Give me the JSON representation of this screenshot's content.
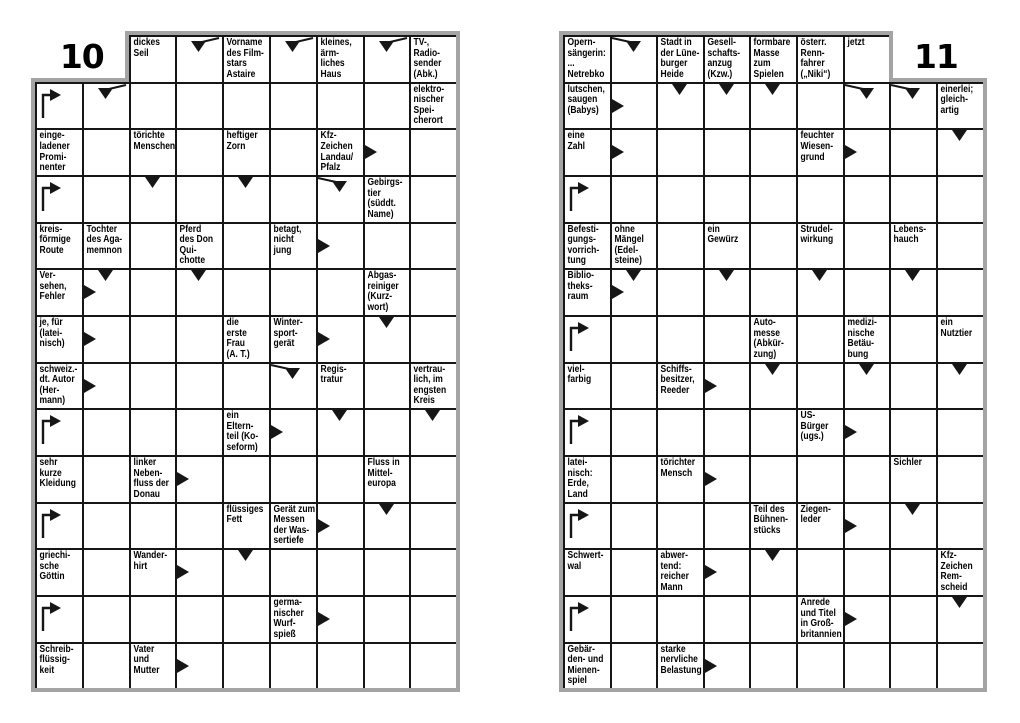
{
  "colors": {
    "grid_line": "#161616",
    "frame": "#a4a4a4",
    "background": "#ffffff",
    "text": "#000000"
  },
  "page_left": {
    "number": "10",
    "cells": [
      {
        "r": 0,
        "c": 2,
        "text": "dickes\nSeil"
      },
      {
        "r": 0,
        "c": 3,
        "arrows": [
          "down-from-right"
        ]
      },
      {
        "r": 0,
        "c": 4,
        "text": "Vorname\ndes Film-\nstars\nAstaire"
      },
      {
        "r": 0,
        "c": 5,
        "arrows": [
          "down-from-right"
        ]
      },
      {
        "r": 0,
        "c": 6,
        "text": "kleines,\närm-\nliches\nHaus"
      },
      {
        "r": 0,
        "c": 7,
        "arrows": [
          "down-from-right"
        ]
      },
      {
        "r": 0,
        "c": 8,
        "text": "TV-,\nRadio-\nsender\n(Abk.)"
      },
      {
        "r": 1,
        "c": 0,
        "arrows": [
          "turn-right"
        ]
      },
      {
        "r": 1,
        "c": 1,
        "arrows": [
          "down-from-right"
        ]
      },
      {
        "r": 1,
        "c": 8,
        "text": "elektro-\nnischer\nSpei-\ncherort"
      },
      {
        "r": 2,
        "c": 0,
        "text": "einge-\nladener\nPromi-\nnenter"
      },
      {
        "r": 2,
        "c": 2,
        "text": "törichte\nMenschen"
      },
      {
        "r": 2,
        "c": 4,
        "text": "heftiger\nZorn"
      },
      {
        "r": 2,
        "c": 6,
        "text": "Kfz-\nZeichen\nLandau/\nPfalz"
      },
      {
        "r": 2,
        "c": 7,
        "arrows": [
          "right"
        ]
      },
      {
        "r": 3,
        "c": 0,
        "arrows": [
          "turn-right"
        ]
      },
      {
        "r": 3,
        "c": 2,
        "arrows": [
          "down"
        ]
      },
      {
        "r": 3,
        "c": 4,
        "arrows": [
          "down"
        ]
      },
      {
        "r": 3,
        "c": 6,
        "arrows": [
          "down-from-left"
        ]
      },
      {
        "r": 3,
        "c": 7,
        "text": "Gebirgs-\ntier\n(süddt.\nName)"
      },
      {
        "r": 4,
        "c": 0,
        "text": "kreis-\nförmige\nRoute"
      },
      {
        "r": 4,
        "c": 1,
        "text": "Tochter\ndes Aga-\nmemnon"
      },
      {
        "r": 4,
        "c": 3,
        "text": "Pferd\ndes Don\nQui-\nchotte"
      },
      {
        "r": 4,
        "c": 5,
        "text": "betagt,\nnicht\njung"
      },
      {
        "r": 4,
        "c": 6,
        "arrows": [
          "right"
        ]
      },
      {
        "r": 5,
        "c": 0,
        "text": "Ver-\nsehen,\nFehler"
      },
      {
        "r": 5,
        "c": 1,
        "arrows": [
          "down",
          "right"
        ]
      },
      {
        "r": 5,
        "c": 3,
        "arrows": [
          "down"
        ]
      },
      {
        "r": 5,
        "c": 7,
        "text": "Abgas-\nreiniger\n(Kurz-\nwort)"
      },
      {
        "r": 6,
        "c": 0,
        "text": "je, für\n(latei-\nnisch)"
      },
      {
        "r": 6,
        "c": 1,
        "arrows": [
          "right"
        ]
      },
      {
        "r": 6,
        "c": 4,
        "text": "die\nerste\nFrau\n(A. T.)"
      },
      {
        "r": 6,
        "c": 5,
        "text": "Winter-\nsport-\ngerät"
      },
      {
        "r": 6,
        "c": 6,
        "arrows": [
          "right"
        ]
      },
      {
        "r": 6,
        "c": 7,
        "arrows": [
          "down"
        ]
      },
      {
        "r": 7,
        "c": 0,
        "text": "schweiz.-\ndt. Autor\n(Her-\nmann)"
      },
      {
        "r": 7,
        "c": 1,
        "arrows": [
          "right"
        ]
      },
      {
        "r": 7,
        "c": 5,
        "arrows": [
          "down-from-left"
        ]
      },
      {
        "r": 7,
        "c": 6,
        "text": "Regis-\ntratur"
      },
      {
        "r": 7,
        "c": 8,
        "text": "vertrau-\nlich, im\nengsten\nKreis"
      },
      {
        "r": 8,
        "c": 0,
        "arrows": [
          "turn-right"
        ]
      },
      {
        "r": 8,
        "c": 4,
        "text": "ein\nEltern-\nteil (Ko-\nseform)"
      },
      {
        "r": 8,
        "c": 5,
        "arrows": [
          "right"
        ]
      },
      {
        "r": 8,
        "c": 6,
        "arrows": [
          "down"
        ]
      },
      {
        "r": 8,
        "c": 8,
        "arrows": [
          "down"
        ]
      },
      {
        "r": 9,
        "c": 0,
        "text": "sehr\nkurze\nKleidung"
      },
      {
        "r": 9,
        "c": 2,
        "text": "linker\nNeben-\nfluss der\nDonau"
      },
      {
        "r": 9,
        "c": 3,
        "arrows": [
          "right"
        ]
      },
      {
        "r": 9,
        "c": 7,
        "text": "Fluss in\nMittel-\neuropa"
      },
      {
        "r": 10,
        "c": 0,
        "arrows": [
          "turn-right"
        ]
      },
      {
        "r": 10,
        "c": 4,
        "text": "flüssiges\nFett"
      },
      {
        "r": 10,
        "c": 5,
        "text": "Gerät zum\nMessen\nder Was-\nsertiefe"
      },
      {
        "r": 10,
        "c": 6,
        "arrows": [
          "right"
        ]
      },
      {
        "r": 10,
        "c": 7,
        "arrows": [
          "down"
        ]
      },
      {
        "r": 11,
        "c": 0,
        "text": "griechi-\nsche\nGöttin"
      },
      {
        "r": 11,
        "c": 2,
        "text": "Wander-\nhirt"
      },
      {
        "r": 11,
        "c": 3,
        "arrows": [
          "right"
        ]
      },
      {
        "r": 11,
        "c": 4,
        "arrows": [
          "down"
        ]
      },
      {
        "r": 12,
        "c": 0,
        "arrows": [
          "turn-right"
        ]
      },
      {
        "r": 12,
        "c": 5,
        "text": "germa-\nnischer\nWurf-\nspieß"
      },
      {
        "r": 12,
        "c": 6,
        "arrows": [
          "right"
        ]
      },
      {
        "r": 13,
        "c": 0,
        "text": "Schreib-\nflüssig-\nkeit"
      },
      {
        "r": 13,
        "c": 2,
        "text": "Vater\nund\nMutter"
      },
      {
        "r": 13,
        "c": 3,
        "arrows": [
          "right"
        ]
      }
    ]
  },
  "page_right": {
    "number": "11",
    "cells": [
      {
        "r": 0,
        "c": 0,
        "text": "Opern-\nsängerin:\n...\nNetrebko"
      },
      {
        "r": 0,
        "c": 1,
        "arrows": [
          "down-from-left"
        ]
      },
      {
        "r": 0,
        "c": 2,
        "text": "Stadt in\nder Lüne-\nburger\nHeide"
      },
      {
        "r": 0,
        "c": 3,
        "text": "Gesell-\nschafts-\nanzug\n(Kzw.)"
      },
      {
        "r": 0,
        "c": 4,
        "text": "formbare\nMasse\nzum\nSpielen"
      },
      {
        "r": 0,
        "c": 5,
        "text": "österr.\nRenn-\nfahrer\n(„Niki“)"
      },
      {
        "r": 0,
        "c": 6,
        "text": "jetzt"
      },
      {
        "r": 1,
        "c": 0,
        "text": "lutschen,\nsaugen\n(Babys)"
      },
      {
        "r": 1,
        "c": 1,
        "arrows": [
          "right"
        ]
      },
      {
        "r": 1,
        "c": 2,
        "arrows": [
          "down"
        ]
      },
      {
        "r": 1,
        "c": 3,
        "arrows": [
          "down"
        ]
      },
      {
        "r": 1,
        "c": 4,
        "arrows": [
          "down"
        ]
      },
      {
        "r": 1,
        "c": 6,
        "arrows": [
          "down-from-left"
        ]
      },
      {
        "r": 1,
        "c": 7,
        "arrows": [
          "down-from-left"
        ]
      },
      {
        "r": 1,
        "c": 8,
        "text": "einerlei;\ngleich-\nartig"
      },
      {
        "r": 2,
        "c": 0,
        "text": "eine\nZahl"
      },
      {
        "r": 2,
        "c": 1,
        "arrows": [
          "right"
        ]
      },
      {
        "r": 2,
        "c": 5,
        "text": "feuchter\nWiesen-\ngrund"
      },
      {
        "r": 2,
        "c": 6,
        "arrows": [
          "right"
        ]
      },
      {
        "r": 2,
        "c": 8,
        "arrows": [
          "down"
        ]
      },
      {
        "r": 3,
        "c": 0,
        "arrows": [
          "turn-right"
        ]
      },
      {
        "r": 4,
        "c": 0,
        "text": "Befesti-\ngungs-\nvorrich-\ntung"
      },
      {
        "r": 4,
        "c": 1,
        "text": "ohne\nMängel\n(Edel-\nsteine)"
      },
      {
        "r": 4,
        "c": 3,
        "text": "ein\nGewürz"
      },
      {
        "r": 4,
        "c": 5,
        "text": "Strudel-\nwirkung"
      },
      {
        "r": 4,
        "c": 7,
        "text": "Lebens-\nhauch"
      },
      {
        "r": 5,
        "c": 0,
        "text": "Biblio-\ntheks-\nraum"
      },
      {
        "r": 5,
        "c": 1,
        "arrows": [
          "down",
          "right"
        ]
      },
      {
        "r": 5,
        "c": 3,
        "arrows": [
          "down"
        ]
      },
      {
        "r": 5,
        "c": 5,
        "arrows": [
          "down"
        ]
      },
      {
        "r": 5,
        "c": 7,
        "arrows": [
          "down"
        ]
      },
      {
        "r": 6,
        "c": 0,
        "arrows": [
          "turn-right"
        ]
      },
      {
        "r": 6,
        "c": 4,
        "text": "Auto-\nmesse\n(Abkür-\nzung)"
      },
      {
        "r": 6,
        "c": 6,
        "text": "medizi-\nnische\nBetäu-\nbung"
      },
      {
        "r": 6,
        "c": 8,
        "text": "ein\nNutztier"
      },
      {
        "r": 7,
        "c": 0,
        "text": "viel-\nfarbig"
      },
      {
        "r": 7,
        "c": 2,
        "text": "Schiffs-\nbesitzer,\nReeder"
      },
      {
        "r": 7,
        "c": 3,
        "arrows": [
          "right"
        ]
      },
      {
        "r": 7,
        "c": 4,
        "arrows": [
          "down"
        ]
      },
      {
        "r": 7,
        "c": 6,
        "arrows": [
          "down"
        ]
      },
      {
        "r": 7,
        "c": 8,
        "arrows": [
          "down"
        ]
      },
      {
        "r": 8,
        "c": 0,
        "arrows": [
          "turn-right"
        ]
      },
      {
        "r": 8,
        "c": 5,
        "text": "US-\nBürger\n(ugs.)"
      },
      {
        "r": 8,
        "c": 6,
        "arrows": [
          "right"
        ]
      },
      {
        "r": 9,
        "c": 0,
        "text": "latei-\nnisch:\nErde,\nLand"
      },
      {
        "r": 9,
        "c": 2,
        "text": "törichter\nMensch"
      },
      {
        "r": 9,
        "c": 3,
        "arrows": [
          "right"
        ]
      },
      {
        "r": 9,
        "c": 7,
        "text": "Sichler"
      },
      {
        "r": 10,
        "c": 0,
        "arrows": [
          "turn-right"
        ]
      },
      {
        "r": 10,
        "c": 4,
        "text": "Teil des\nBühnen-\nstücks"
      },
      {
        "r": 10,
        "c": 5,
        "text": "Ziegen-\nleder"
      },
      {
        "r": 10,
        "c": 6,
        "arrows": [
          "right"
        ]
      },
      {
        "r": 10,
        "c": 7,
        "arrows": [
          "down"
        ]
      },
      {
        "r": 11,
        "c": 0,
        "text": "Schwert-\nwal"
      },
      {
        "r": 11,
        "c": 2,
        "text": "abwer-\ntend:\nreicher\nMann"
      },
      {
        "r": 11,
        "c": 3,
        "arrows": [
          "right"
        ]
      },
      {
        "r": 11,
        "c": 4,
        "arrows": [
          "down"
        ]
      },
      {
        "r": 11,
        "c": 8,
        "text": "Kfz-\nZeichen\nRem-\nscheid"
      },
      {
        "r": 12,
        "c": 0,
        "arrows": [
          "turn-right"
        ]
      },
      {
        "r": 12,
        "c": 5,
        "text": "Anrede\nund Titel\nin Groß-\nbritannien"
      },
      {
        "r": 12,
        "c": 6,
        "arrows": [
          "right"
        ]
      },
      {
        "r": 12,
        "c": 8,
        "arrows": [
          "down"
        ]
      },
      {
        "r": 13,
        "c": 0,
        "text": "Gebär-\nden- und\nMienen-\nspiel"
      },
      {
        "r": 13,
        "c": 2,
        "text": "starke\nnervliche\nBelastung"
      },
      {
        "r": 13,
        "c": 3,
        "arrows": [
          "right"
        ]
      }
    ]
  }
}
